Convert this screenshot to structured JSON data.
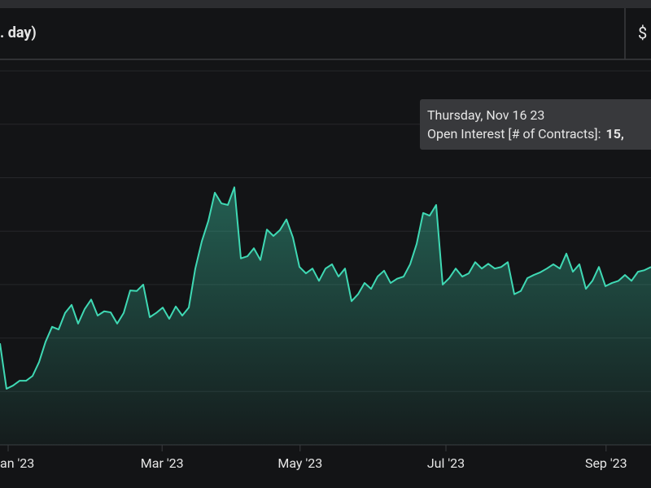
{
  "header": {
    "title": ". day)",
    "currency": "$"
  },
  "chart_data": {
    "type": "area",
    "series": [
      {
        "color": "#3fd9b4",
        "values": [
          1.9,
          1.05,
          1.11,
          1.2,
          1.2,
          1.29,
          1.55,
          1.93,
          2.21,
          2.16,
          2.47,
          2.62,
          2.27,
          2.54,
          2.72,
          2.42,
          2.5,
          2.48,
          2.27,
          2.47,
          2.89,
          2.88,
          3.0,
          2.39,
          2.47,
          2.57,
          2.36,
          2.59,
          2.42,
          2.57,
          3.3,
          3.81,
          4.19,
          4.72,
          4.52,
          4.49,
          4.82,
          3.49,
          3.53,
          3.68,
          3.46,
          4.03,
          3.91,
          4.02,
          4.22,
          3.88,
          3.33,
          3.21,
          3.3,
          3.07,
          3.3,
          3.38,
          3.15,
          3.3,
          2.69,
          2.82,
          3.03,
          2.92,
          3.15,
          3.26,
          3.03,
          3.11,
          3.15,
          3.38,
          3.76,
          4.34,
          4.29,
          4.49,
          3.0,
          3.12,
          3.3,
          3.15,
          3.21,
          3.42,
          3.3,
          3.39,
          3.3,
          3.33,
          3.42,
          2.82,
          2.88,
          3.12,
          3.18,
          3.23,
          3.3,
          3.38,
          3.3,
          3.58,
          3.24,
          3.38,
          2.92,
          3.07,
          3.33,
          2.97,
          3.03,
          3.07,
          3.18,
          3.07,
          3.24,
          3.27,
          3.33
        ]
      }
    ],
    "ylim": [
      0,
      7.2
    ],
    "yticks": [
      0,
      1,
      2,
      3,
      4,
      5,
      6,
      7
    ],
    "grid": true,
    "xticks": [
      {
        "value": 1.25,
        "label": "an '23"
      },
      {
        "value": 24.9,
        "label": "Mar '23"
      },
      {
        "value": 46.1,
        "label": "May '23"
      },
      {
        "value": 68.5,
        "label": "Jul '23"
      },
      {
        "value": 93.1,
        "label": "Sep '23"
      }
    ],
    "tooltip": {
      "date": "Thursday, Nov 16 23",
      "label": "Open Interest [# of Contracts]:",
      "value": "15,"
    }
  }
}
